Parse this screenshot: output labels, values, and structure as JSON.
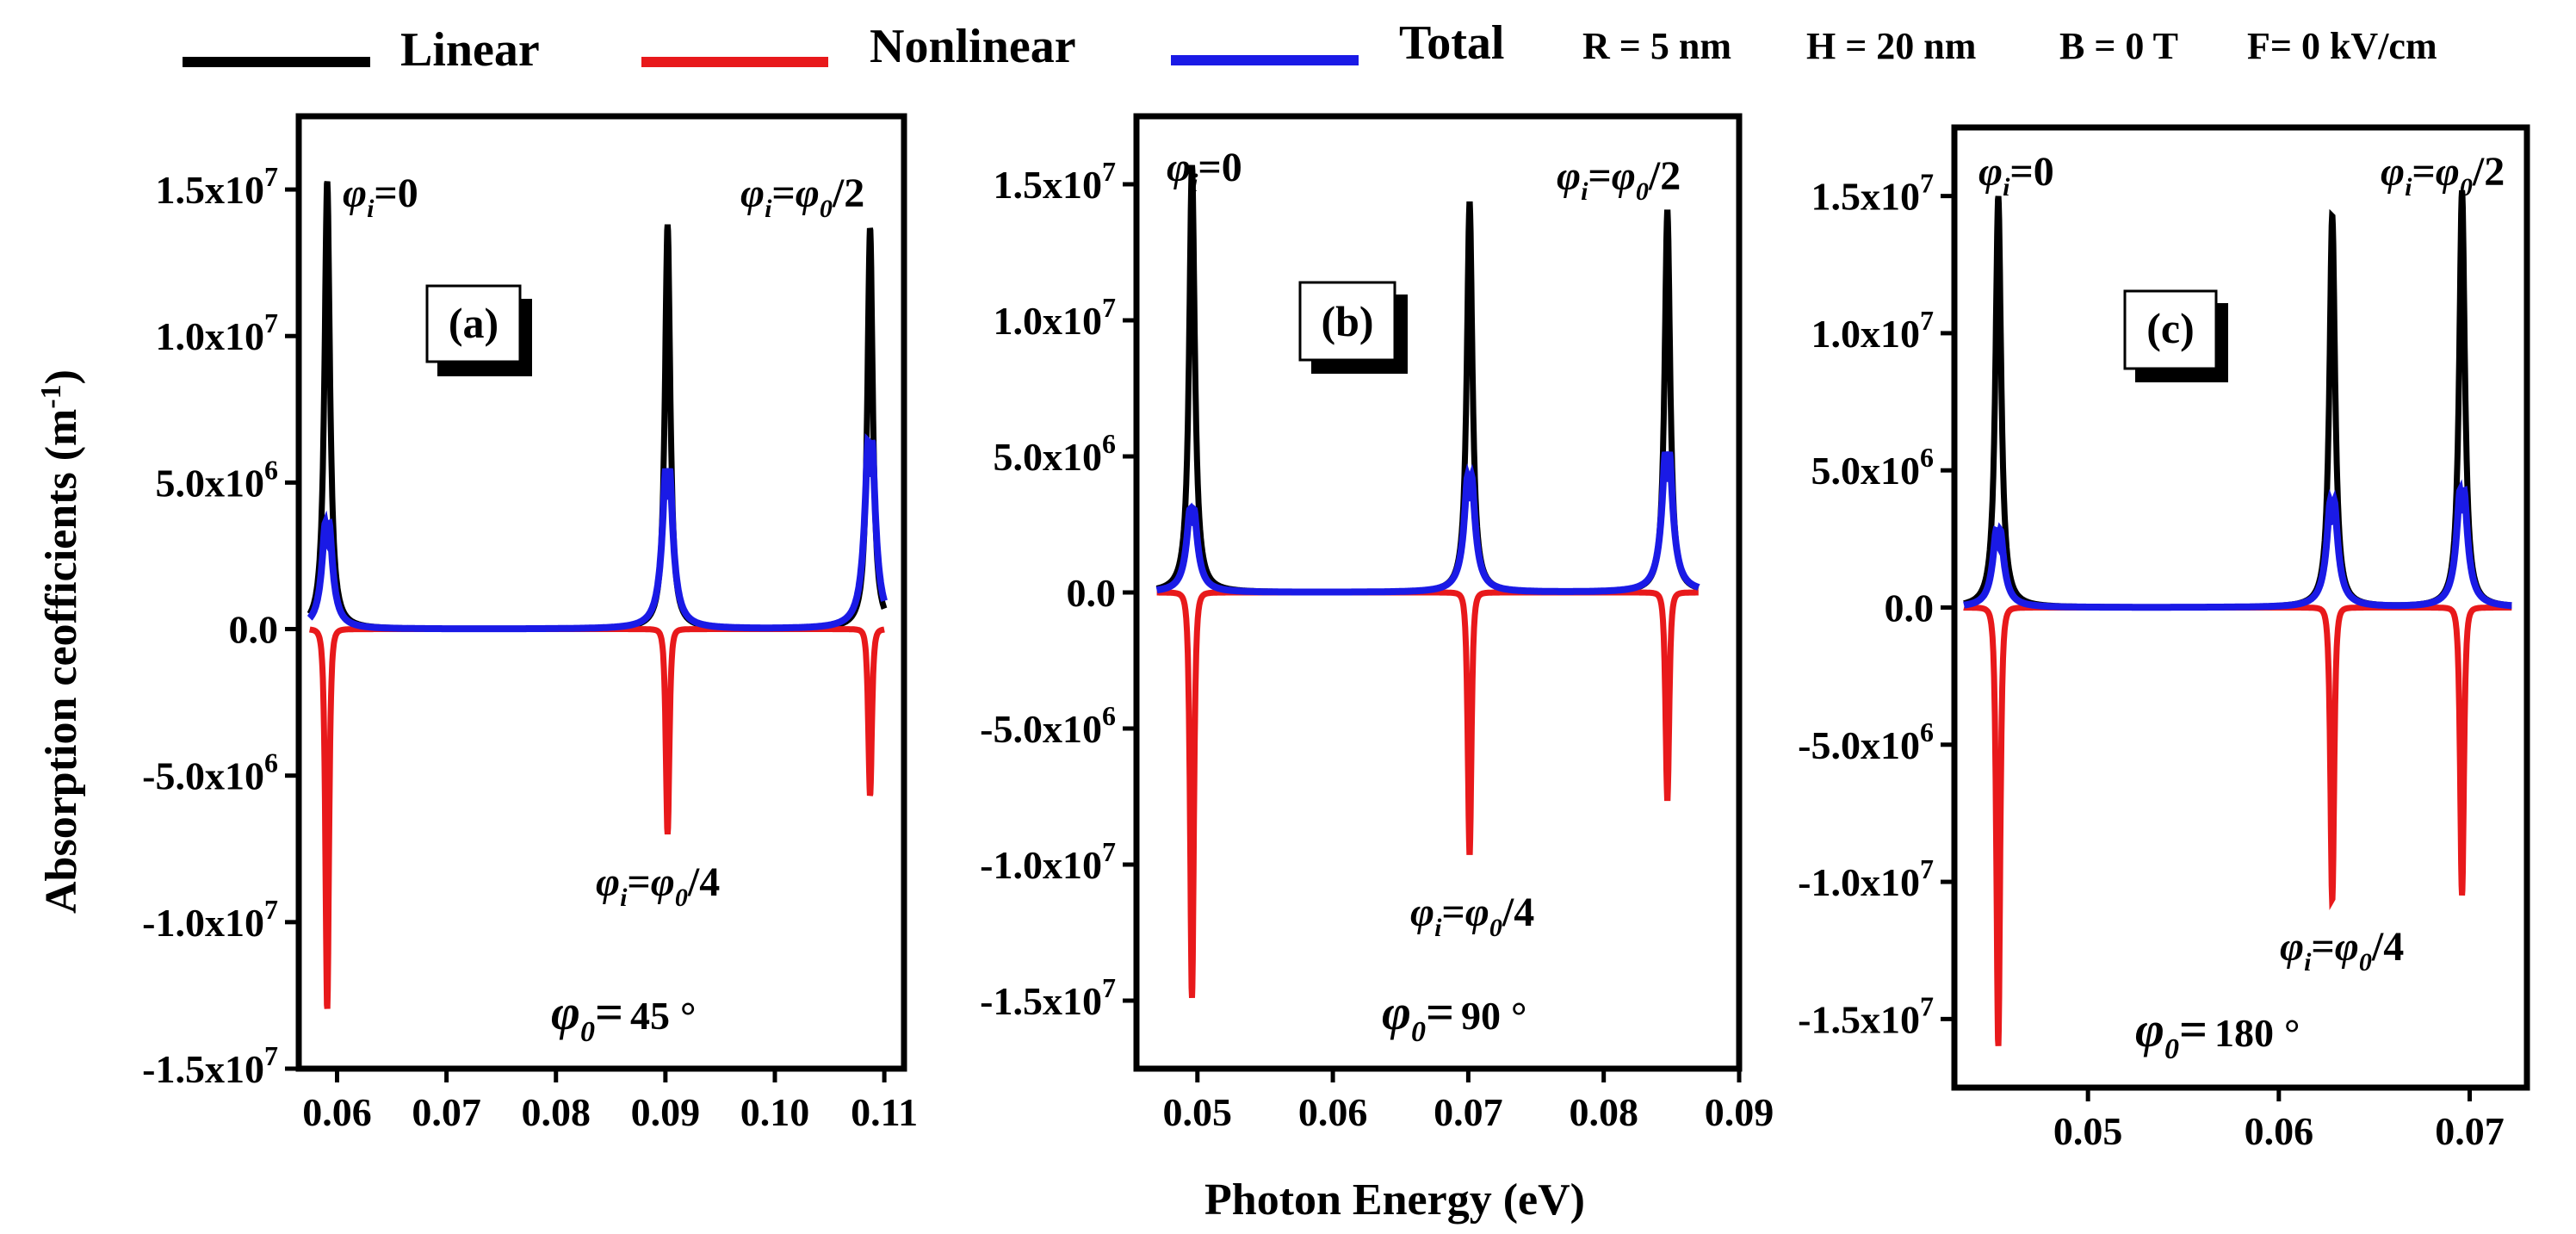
{
  "chart_data": {
    "type": "line",
    "legend": {
      "entries": [
        {
          "name": "Linear",
          "color": "#000000"
        },
        {
          "name": "Nonlinear",
          "color": "#e8191b"
        },
        {
          "name": "Total",
          "color": "#1a1ae6"
        }
      ],
      "placement": "top"
    },
    "parameters": [
      "R = 5 nm",
      "H = 20 nm",
      "B = 0 T",
      "F= 0 kV/cm"
    ],
    "xlabel": "Photon Energy (eV)",
    "ylabel": "Absorption ceofficients (m-1)",
    "ylabel_base": "Absorption ceofficients (m",
    "ylabel_sup": "-1",
    "ylabel_tail": ")",
    "annotation_texts": {
      "phi_symbol": "φ",
      "sub_i": "i",
      "sub_0": "0",
      "eq_zero": "=0",
      "eq_half": "/2",
      "eq_quarter": "/4",
      "equals": "=",
      "degree": "°"
    },
    "panels": [
      {
        "label": "(a)",
        "phi0": "45",
        "phi0_deg": 45,
        "xlim": [
          0.0565,
          0.1118
        ],
        "ylim": [
          -15000000.0,
          17500000.0
        ],
        "xticks": [
          0.06,
          0.07,
          0.08,
          0.09,
          0.1,
          0.11
        ],
        "xtick_labels": [
          "0.06",
          "0.07",
          "0.08",
          "0.09",
          "0.10",
          "0.11"
        ],
        "yticks": [
          -15000000.0,
          -10000000.0,
          -5000000.0,
          0,
          5000000.0,
          10000000.0,
          15000000.0
        ],
        "ytick_labels": [
          "-1.5x10^7",
          "-1.0x10^7",
          "-5.0x10^6",
          "0.0",
          "5.0x10^6",
          "1.0x10^7",
          "1.5x10^7"
        ],
        "x_range": [
          0.0575,
          0.11
        ],
        "peaks": [
          {
            "energy": 0.0591,
            "linear": 15300000.0,
            "nonlinear": -13000000.0,
            "total": 4500000.0,
            "width": 0.0003
          },
          {
            "energy": 0.0902,
            "linear": 13800000.0,
            "nonlinear": -7000000.0,
            "total": 6800000.0,
            "width": 0.0003
          },
          {
            "energy": 0.1087,
            "linear": 13700000.0,
            "nonlinear": -5700000.0,
            "total": 8000000.0,
            "width": 0.0003
          }
        ],
        "annotations": [
          {
            "text": "φi=0"
          },
          {
            "text": "φi=φ0/2"
          },
          {
            "text": "φi=φ0/4"
          },
          {
            "text": "φ0= 45 °"
          }
        ]
      },
      {
        "label": "(b)",
        "phi0": "90",
        "phi0_deg": 90,
        "xlim": [
          0.0455,
          0.09
        ],
        "ylim": [
          -17500000.0,
          17500000.0
        ],
        "xticks": [
          0.05,
          0.06,
          0.07,
          0.08,
          0.09
        ],
        "xtick_labels": [
          "0.05",
          "0.06",
          "0.07",
          "0.08",
          "0.09"
        ],
        "yticks": [
          -15000000.0,
          -10000000.0,
          -5000000.0,
          0,
          5000000.0,
          10000000.0,
          15000000.0
        ],
        "ytick_labels": [
          "-1.5x10^7",
          "-1.0x10^7",
          "-5.0x10^6",
          "0.0",
          "5.0x10^6",
          "1.0x10^7",
          "1.5x10^7"
        ],
        "x_range": [
          0.047,
          0.087
        ],
        "peaks": [
          {
            "energy": 0.0496,
            "linear": 15700000.0,
            "nonlinear": -14900000.0,
            "total": 3800000.0,
            "width": 0.00025
          },
          {
            "energy": 0.0701,
            "linear": 14300000.0,
            "nonlinear": -9600000.0,
            "total": 5300000.0,
            "width": 0.00025
          },
          {
            "energy": 0.0847,
            "linear": 14000000.0,
            "nonlinear": -7600000.0,
            "total": 6400000.0,
            "width": 0.00025
          }
        ],
        "annotations": [
          {
            "text": "φi=0"
          },
          {
            "text": "φi=φ0/2"
          },
          {
            "text": "φi=φ0/4"
          },
          {
            "text": "φ0= 90 °"
          }
        ]
      },
      {
        "label": "(c)",
        "phi0": "180",
        "phi0_deg": 180,
        "xlim": [
          0.043,
          0.073
        ],
        "ylim": [
          -17500000.0,
          17500000.0
        ],
        "xticks": [
          0.05,
          0.06,
          0.07
        ],
        "xtick_labels": [
          "0.05",
          "0.06",
          "0.07"
        ],
        "yticks": [
          -15000000.0,
          -10000000.0,
          -5000000.0,
          0,
          5000000.0,
          10000000.0,
          15000000.0
        ],
        "ytick_labels": [
          "-1.5x10^7",
          "-1.0x10^7",
          "-5.0x10^6",
          "0.0",
          "5.0x10^6",
          "1.0x10^7",
          "1.5x10^7"
        ],
        "x_range": [
          0.0435,
          0.0722
        ],
        "peaks": [
          {
            "energy": 0.0453,
            "linear": 15000000.0,
            "nonlinear": -16000000.0,
            "total": 3500000.0,
            "width": 0.00018
          },
          {
            "energy": 0.0628,
            "linear": 14300000.0,
            "nonlinear": -10700000.0,
            "total": 4800000.0,
            "width": 0.00018
          },
          {
            "energy": 0.0696,
            "linear": 15200000.0,
            "nonlinear": -10500000.0,
            "total": 5300000.0,
            "width": 0.00018
          }
        ],
        "annotations": [
          {
            "text": "φi=0"
          },
          {
            "text": "φi=φ0/2"
          },
          {
            "text": "φi=φ0/4"
          },
          {
            "text": "φ0= 180 °"
          }
        ]
      }
    ]
  }
}
